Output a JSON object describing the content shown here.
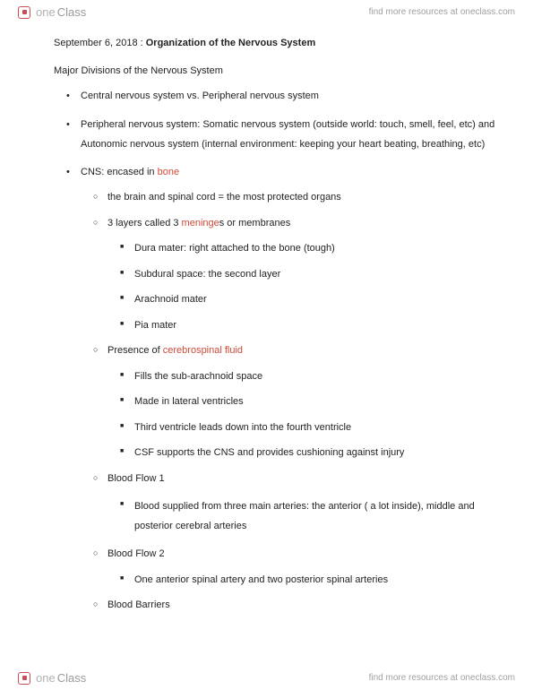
{
  "brand": {
    "part1": "one",
    "part2": "Class",
    "tagline": "find more resources at oneclass.com"
  },
  "doc": {
    "date": "September 6, 2018 :",
    "title": "Organization of the Nervous System",
    "subhead": "Major Divisions of the Nervous System",
    "bullets": {
      "b1_1": "Central nervous system vs. Peripheral nervous system",
      "b1_2": "Peripheral nervous system: Somatic nervous system (outside world: touch, smell, feel, etc) and Autonomic nervous system (internal environment: keeping your heart beating, breathing, etc)",
      "b1_3_pre": "CNS: encased in ",
      "b1_3_hl": "bone",
      "b2_1": "the brain and spinal cord = the most protected organs",
      "b2_2_pre": "3 layers called 3 ",
      "b2_2_hl": "meninge",
      "b2_2_post": "s or membranes",
      "b3_1": "Dura mater: right attached to the bone (tough)",
      "b3_2": "Subdural space: the second layer",
      "b3_3": "Arachnoid mater",
      "b3_4": "Pia mater",
      "b2_3_pre": "Presence of ",
      "b2_3_hl": "cerebrospinal fluid",
      "b3_5": "Fills the sub-arachnoid space",
      "b3_6": "Made in lateral ventricles",
      "b3_7": "Third ventricle leads down into the fourth ventricle",
      "b3_8": "CSF supports the CNS and provides cushioning against injury",
      "b2_4": "Blood Flow 1",
      "b3_9": "Blood supplied from three main arteries: the anterior ( a lot inside), middle and posterior cerebral arteries",
      "b2_5": "Blood Flow 2",
      "b3_10": "One anterior spinal artery and two posterior spinal arteries",
      "b2_6": "Blood Barriers"
    }
  }
}
